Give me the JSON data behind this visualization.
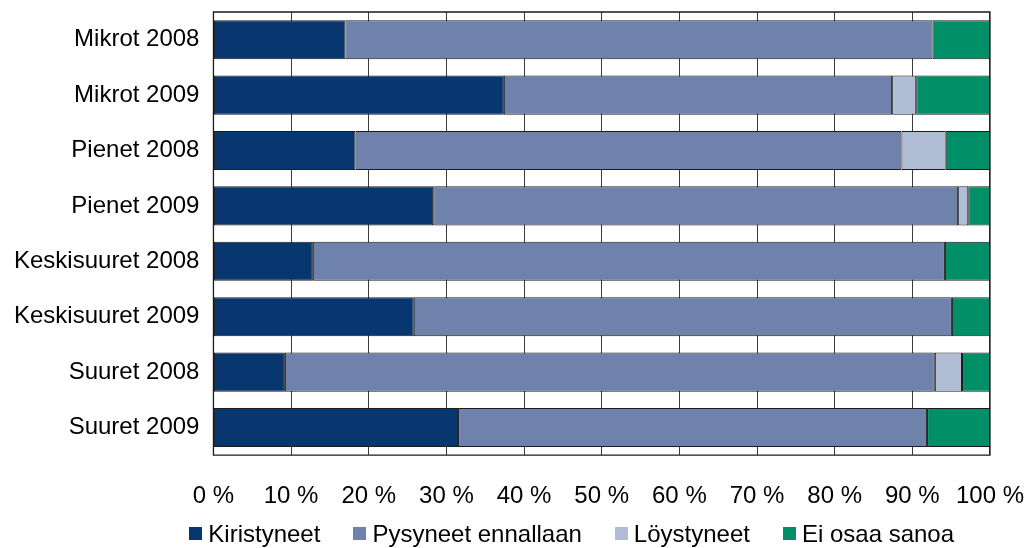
{
  "chart_data": {
    "type": "bar",
    "orientation": "horizontal",
    "stacked": true,
    "categories": [
      "Mikrot 2008",
      "Mikrot 2009",
      "Pienet 2008",
      "Pienet 2009",
      "Keskisuuret 2008",
      "Keskisuuret 2009",
      "Suuret 2008",
      "Suuret 2009"
    ],
    "series": [
      {
        "name": "Kiristyneet",
        "color": "#08366e",
        "values": [
          17.0,
          37.4,
          18.3,
          28.3,
          12.8,
          25.8,
          9.2,
          31.5
        ]
      },
      {
        "name": "Pysyneet ennallaan",
        "color": "#6e82ab",
        "values": [
          75.6,
          50.0,
          70.3,
          67.6,
          81.4,
          69.3,
          83.7,
          60.4
        ]
      },
      {
        "name": "Löystyneet",
        "color": "#b1bcd5",
        "values": [
          0,
          3.1,
          5.7,
          1.3,
          0,
          0,
          3.5,
          0
        ]
      },
      {
        "name": "Ei osaa sanoa",
        "color": "#008f66",
        "values": [
          7.4,
          9.5,
          5.7,
          2.8,
          5.8,
          4.9,
          3.6,
          8.1
        ]
      }
    ],
    "xlim": [
      0,
      100
    ],
    "xticks": [
      {
        "value": 0,
        "label": "0 %"
      },
      {
        "value": 10,
        "label": "10 %"
      },
      {
        "value": 20,
        "label": "20 %"
      },
      {
        "value": 30,
        "label": "30 %"
      },
      {
        "value": 40,
        "label": "40 %"
      },
      {
        "value": 50,
        "label": "50 %"
      },
      {
        "value": 60,
        "label": "60 %"
      },
      {
        "value": 70,
        "label": "70 %"
      },
      {
        "value": 80,
        "label": "80 %"
      },
      {
        "value": 90,
        "label": "90 %"
      },
      {
        "value": 100,
        "label": "100 %"
      }
    ],
    "grid": "x",
    "legend": "bottom"
  }
}
